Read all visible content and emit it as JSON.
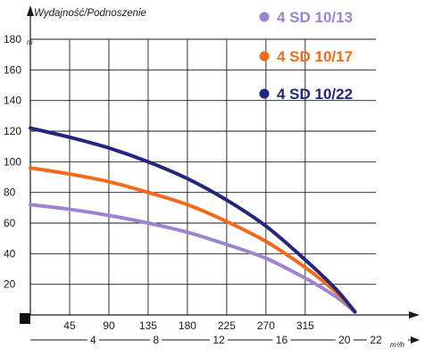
{
  "chart_data": {
    "type": "line",
    "title": "Wydajność/Podnoszenie",
    "ylabel_unit": "m",
    "x2_unit": "m³/h",
    "grid": true,
    "ylim": [
      0,
      180
    ],
    "xlim": [
      0,
      396
    ],
    "x_ticks": [
      45,
      90,
      135,
      180,
      225,
      270,
      315
    ],
    "x2_ticks": [
      4,
      8,
      12,
      16,
      20,
      22
    ],
    "y_ticks": [
      20,
      40,
      60,
      80,
      100,
      120,
      140,
      160,
      180
    ],
    "legend_position": "top-right",
    "series": [
      {
        "name": "4 SD 10/13",
        "color": "#9c84d0",
        "x": [
          0,
          45,
          90,
          135,
          180,
          225,
          270,
          315,
          350,
          372
        ],
        "y": [
          72,
          69,
          65,
          60,
          54,
          46,
          37,
          24,
          12,
          2
        ]
      },
      {
        "name": "4 SD 10/17",
        "color": "#f26b1d",
        "x": [
          0,
          45,
          90,
          135,
          180,
          225,
          270,
          315,
          350,
          372
        ],
        "y": [
          96,
          92,
          87,
          80,
          72,
          61,
          48,
          31,
          15,
          2
        ]
      },
      {
        "name": "4 SD 10/22",
        "color": "#23267d",
        "x": [
          0,
          45,
          90,
          135,
          180,
          225,
          270,
          315,
          350,
          372
        ],
        "y": [
          122,
          116,
          109,
          100,
          89,
          75,
          58,
          36,
          17,
          2
        ]
      }
    ]
  }
}
